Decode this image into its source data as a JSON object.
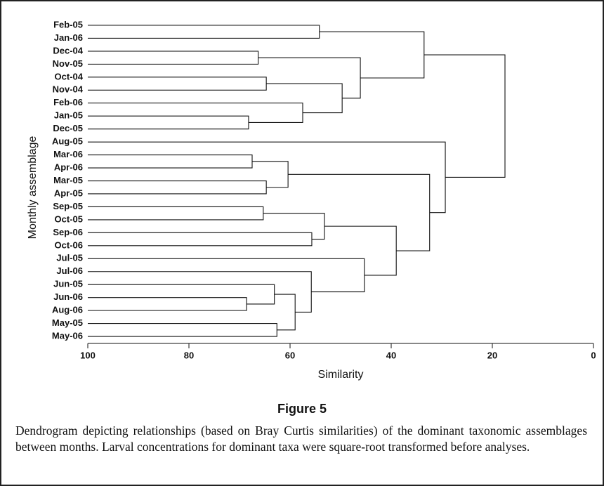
{
  "chart_data": {
    "type": "dendrogram",
    "title": "Figure 5",
    "caption": "Dendrogram depicting relationships (based on Bray Curtis similarities) of the dominant taxonomic assemblages between months. Larval concentrations for dominant taxa were square-root transformed before analyses.",
    "xlabel": "Similarity",
    "ylabel": "Monthly assemblage",
    "xlim": [
      100,
      0
    ],
    "xticks": [
      100,
      80,
      60,
      40,
      20,
      0
    ],
    "color": "#111111",
    "tree": {
      "value": 17.5,
      "children": [
        {
          "value": 33.5,
          "children": [
            {
              "value": 54.2,
              "children": [
                {
                  "label": "Feb-05"
                },
                {
                  "label": "Jan-06"
                }
              ]
            },
            {
              "value": 46.1,
              "children": [
                {
                  "value": 66.3,
                  "children": [
                    {
                      "label": "Dec-04"
                    },
                    {
                      "label": "Nov-05"
                    }
                  ]
                },
                {
                  "value": 49.7,
                  "children": [
                    {
                      "value": 64.7,
                      "children": [
                        {
                          "label": "Oct-04"
                        },
                        {
                          "label": "Nov-04"
                        }
                      ]
                    },
                    {
                      "value": 57.5,
                      "children": [
                        {
                          "label": "Feb-06"
                        },
                        {
                          "value": 68.2,
                          "children": [
                            {
                              "label": "Jan-05"
                            },
                            {
                              "label": "Dec-05"
                            }
                          ]
                        }
                      ]
                    }
                  ]
                }
              ]
            }
          ]
        },
        {
          "value": 29.3,
          "children": [
            {
              "label": "Aug-05"
            },
            {
              "value": 32.4,
              "children": [
                {
                  "value": 60.4,
                  "children": [
                    {
                      "value": 67.5,
                      "children": [
                        {
                          "label": "Mar-06"
                        },
                        {
                          "label": "Apr-06"
                        }
                      ]
                    },
                    {
                      "value": 64.7,
                      "children": [
                        {
                          "label": "Mar-05"
                        },
                        {
                          "label": "Apr-05"
                        }
                      ]
                    }
                  ]
                },
                {
                  "value": 39.0,
                  "children": [
                    {
                      "value": 53.2,
                      "children": [
                        {
                          "value": 65.3,
                          "children": [
                            {
                              "label": "Sep-05"
                            },
                            {
                              "label": "Oct-05"
                            }
                          ]
                        },
                        {
                          "value": 55.7,
                          "children": [
                            {
                              "label": "Sep-06"
                            },
                            {
                              "label": "Oct-06"
                            }
                          ]
                        }
                      ]
                    },
                    {
                      "value": 45.3,
                      "children": [
                        {
                          "label": "Jul-05"
                        },
                        {
                          "value": 55.8,
                          "children": [
                            {
                              "label": "Jul-06"
                            },
                            {
                              "value": 59.0,
                              "children": [
                                {
                                  "value": 63.1,
                                  "children": [
                                    {
                                      "label": "Jun-05"
                                    },
                                    {
                                      "value": 68.6,
                                      "children": [
                                        {
                                          "label": "Jun-06"
                                        },
                                        {
                                          "label": "Aug-06"
                                        }
                                      ]
                                    }
                                  ]
                                },
                                {
                                  "value": 62.6,
                                  "children": [
                                    {
                                      "label": "May-05"
                                    },
                                    {
                                      "label": "May-06"
                                    }
                                  ]
                                }
                              ]
                            }
                          ]
                        }
                      ]
                    }
                  ]
                }
              ]
            }
          ]
        }
      ]
    }
  }
}
